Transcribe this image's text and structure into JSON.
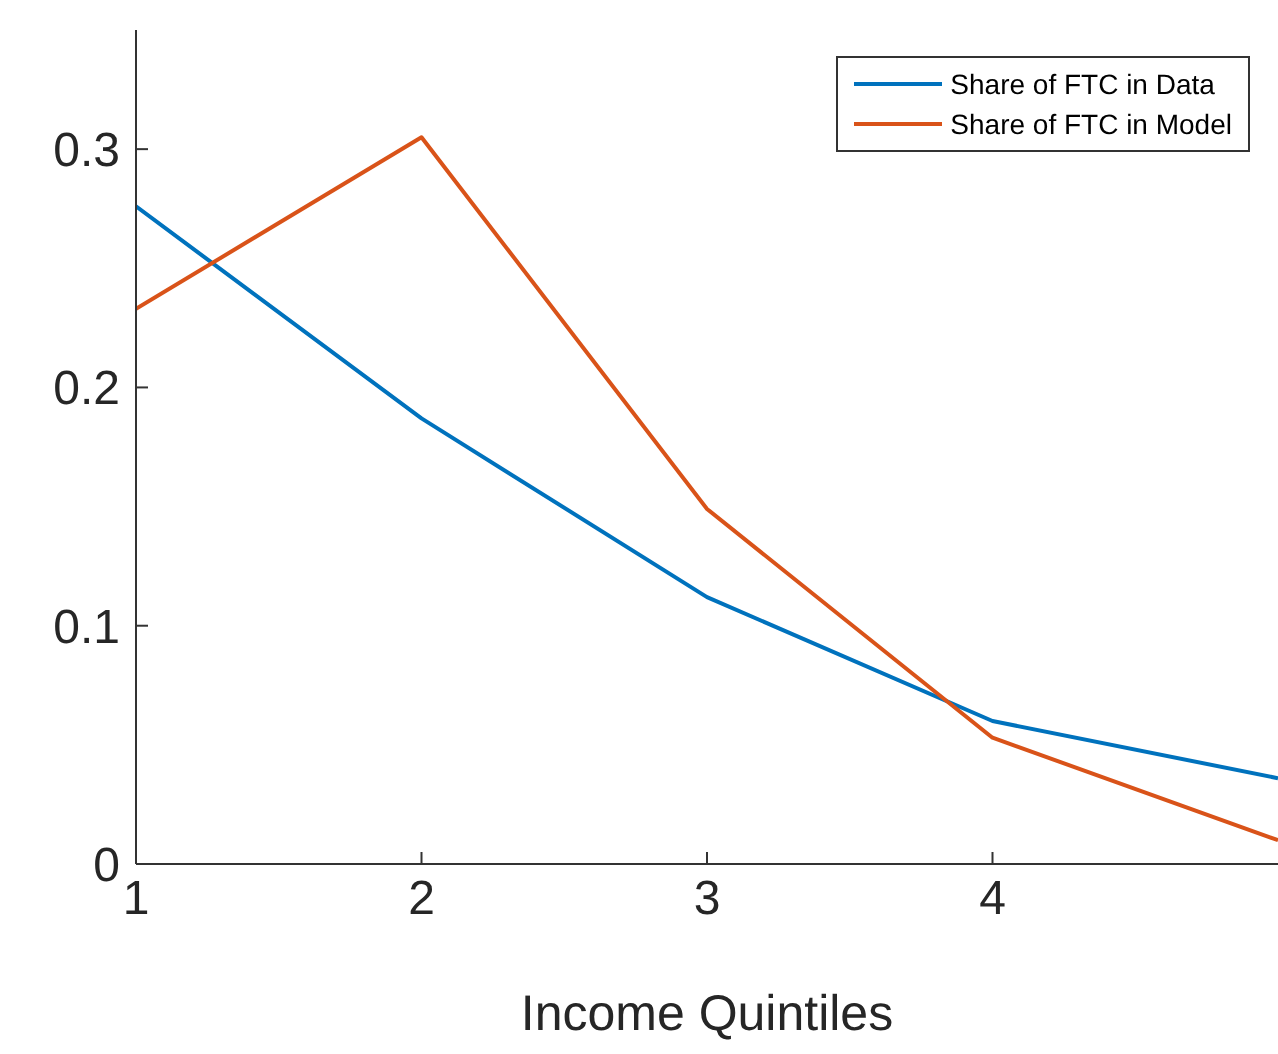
{
  "chart_data": {
    "type": "line",
    "xlabel": "Income Quintiles",
    "x": [
      1,
      2,
      3,
      4,
      5
    ],
    "series": [
      {
        "name": "Share of FTC in Data",
        "color": "#0072bd",
        "values": [
          0.276,
          0.187,
          0.112,
          0.06,
          0.036
        ]
      },
      {
        "name": "Share of FTC in Model",
        "color": "#d95319",
        "values": [
          0.233,
          0.305,
          0.149,
          0.053,
          0.01
        ]
      }
    ],
    "xlim": [
      1,
      5
    ],
    "xticks": [
      1,
      2,
      3,
      4
    ],
    "ylim": [
      0,
      0.35
    ],
    "yticks": [
      0,
      0.1,
      0.2,
      0.3
    ],
    "grid": false,
    "legend": "top right",
    "marker": "none",
    "line_style": "solid"
  }
}
